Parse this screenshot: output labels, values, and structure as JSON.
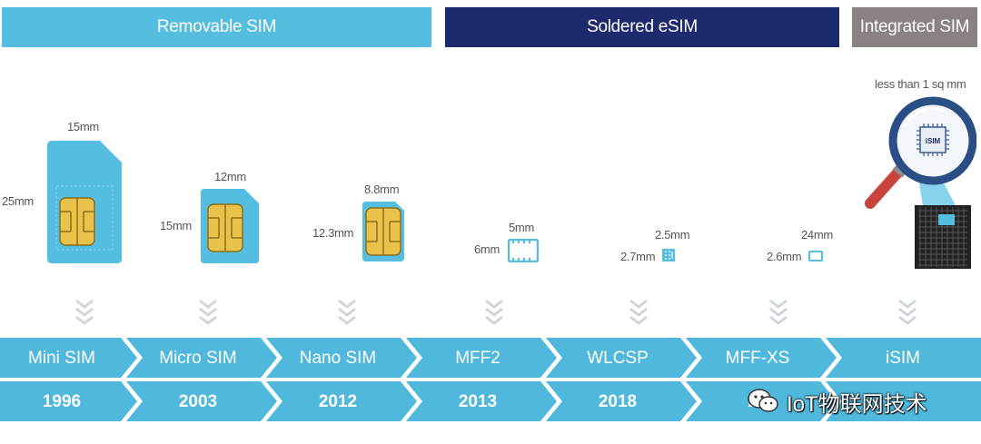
{
  "bands": [
    {
      "label": "Removable SIM"
    },
    {
      "label": "Soldered eSIM"
    },
    {
      "label": "Integrated SIM"
    }
  ],
  "cards": {
    "mini": {
      "width_label": "15mm",
      "height_label": "25mm"
    },
    "micro": {
      "width_label": "12mm",
      "height_label": "15mm"
    },
    "nano": {
      "width_label": "8.8mm",
      "height_label": "12.3mm"
    },
    "mff2": {
      "width_label": "5mm",
      "height_label": "6mm"
    },
    "wlcsp": {
      "width_label": "2.5mm",
      "height_label": "2.7mm"
    },
    "mffxs": {
      "width_label": "24mm",
      "height_label": "2.6mm"
    },
    "isim": {
      "size_label": "less than 1 sq mm",
      "chip_label": "iSIM"
    }
  },
  "timeline": [
    {
      "name": "Mini SIM",
      "year": "1996"
    },
    {
      "name": "Micro SIM",
      "year": "2003"
    },
    {
      "name": "Nano SIM",
      "year": "2012"
    },
    {
      "name": "MFF2",
      "year": "2013"
    },
    {
      "name": "WLCSP",
      "year": "2018"
    },
    {
      "name": "MFF-XS",
      "year": "20"
    },
    {
      "name": "iSIM",
      "year": ""
    }
  ],
  "watermark": {
    "text": "IoT物联网技术",
    "icon": "wechat-icon"
  },
  "colors": {
    "removable": "#55bde0",
    "soldered": "#1e2a6e",
    "integrated": "#8a8181",
    "timeline": "#4fb8dc",
    "chip_gold": "#e8c24a"
  }
}
